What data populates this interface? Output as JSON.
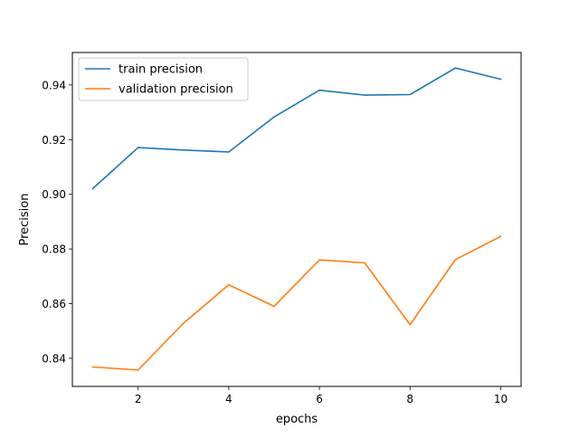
{
  "chart_data": {
    "type": "line",
    "title": "",
    "xlabel": "epochs",
    "ylabel": "Precision",
    "xlim": [
      0.55,
      10.45
    ],
    "ylim": [
      0.8297,
      0.9519
    ],
    "xticks": [
      2,
      4,
      6,
      8,
      10
    ],
    "xtick_labels": [
      "2",
      "4",
      "6",
      "8",
      "10"
    ],
    "yticks": [
      0.84,
      0.86,
      0.88,
      0.9,
      0.92,
      0.94
    ],
    "ytick_labels": [
      "0.84",
      "0.86",
      "0.88",
      "0.90",
      "0.92",
      "0.94"
    ],
    "grid": false,
    "legend_position": "top-left",
    "x": [
      1,
      2,
      3,
      4,
      5,
      6,
      7,
      8,
      9,
      10
    ],
    "series": [
      {
        "name": "train precision",
        "color": "#1f77b4",
        "values": [
          0.9021,
          0.9171,
          0.9162,
          0.9155,
          0.9283,
          0.9381,
          0.9363,
          0.9365,
          0.9462,
          0.9421
        ]
      },
      {
        "name": "validation precision",
        "color": "#ff7f0e",
        "values": [
          0.8368,
          0.8357,
          0.8528,
          0.8669,
          0.859,
          0.876,
          0.8749,
          0.8523,
          0.8761,
          0.8846
        ]
      }
    ]
  }
}
